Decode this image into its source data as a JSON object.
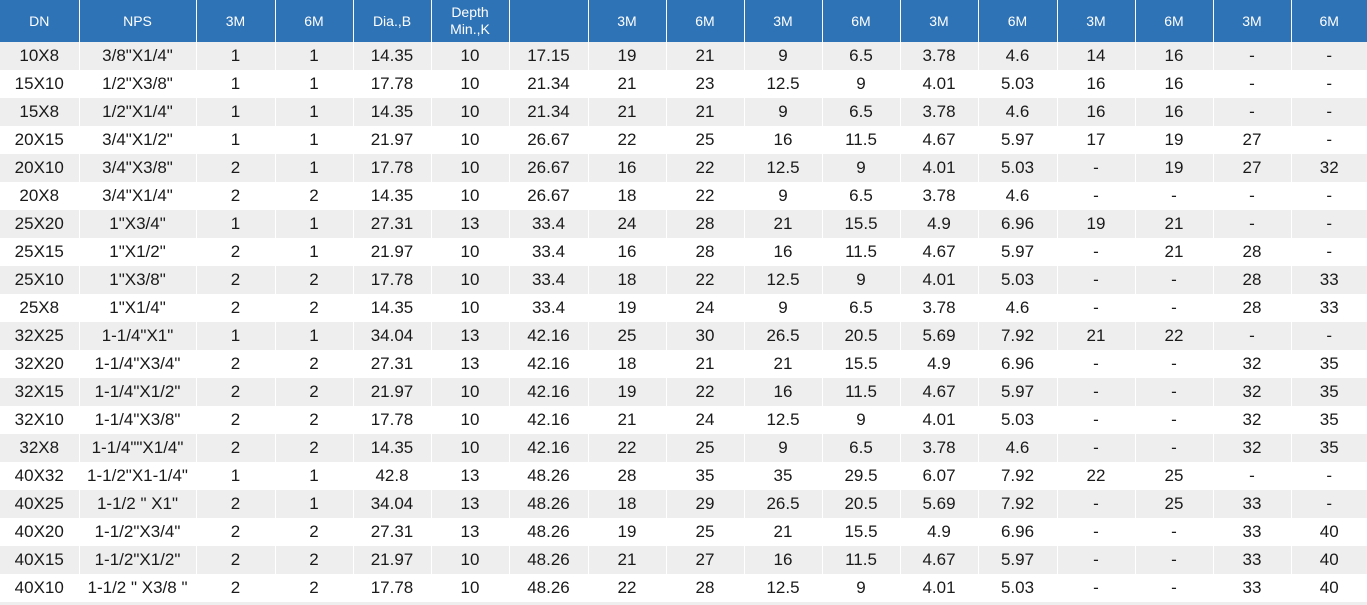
{
  "table": {
    "headers": [
      "DN",
      "NPS",
      "3M",
      "6M",
      "Dia.,B",
      "Depth\nMin.,K",
      "",
      "3M",
      "6M",
      "3M",
      "6M",
      "3M",
      "6M",
      "3M",
      "6M",
      "3M",
      "6M"
    ],
    "rows": [
      [
        "10X8",
        "3/8\"X1/4\"",
        "1",
        "1",
        "14.35",
        "10",
        "17.15",
        "19",
        "21",
        "9",
        "6.5",
        "3.78",
        "4.6",
        "14",
        "16",
        "-",
        "-"
      ],
      [
        "15X10",
        "1/2\"X3/8\"",
        "1",
        "1",
        "17.78",
        "10",
        "21.34",
        "21",
        "23",
        "12.5",
        "9",
        "4.01",
        "5.03",
        "16",
        "16",
        "-",
        "-"
      ],
      [
        "15X8",
        "1/2\"X1/4\"",
        "1",
        "1",
        "14.35",
        "10",
        "21.34",
        "21",
        "21",
        "9",
        "6.5",
        "3.78",
        "4.6",
        "16",
        "16",
        "-",
        "-"
      ],
      [
        "20X15",
        "3/4\"X1/2\"",
        "1",
        "1",
        "21.97",
        "10",
        "26.67",
        "22",
        "25",
        "16",
        "11.5",
        "4.67",
        "5.97",
        "17",
        "19",
        "27",
        "-"
      ],
      [
        "20X10",
        "3/4\"X3/8\"",
        "2",
        "1",
        "17.78",
        "10",
        "26.67",
        "16",
        "22",
        "12.5",
        "9",
        "4.01",
        "5.03",
        "-",
        "19",
        "27",
        "32"
      ],
      [
        "20X8",
        "3/4\"X1/4\"",
        "2",
        "2",
        "14.35",
        "10",
        "26.67",
        "18",
        "22",
        "9",
        "6.5",
        "3.78",
        "4.6",
        "-",
        "-",
        "-",
        "-"
      ],
      [
        "25X20",
        "1\"X3/4\"",
        "1",
        "1",
        "27.31",
        "13",
        "33.4",
        "24",
        "28",
        "21",
        "15.5",
        "4.9",
        "6.96",
        "19",
        "21",
        "-",
        "-"
      ],
      [
        "25X15",
        "1\"X1/2\"",
        "2",
        "1",
        "21.97",
        "10",
        "33.4",
        "16",
        "28",
        "16",
        "11.5",
        "4.67",
        "5.97",
        "-",
        "21",
        "28",
        "-"
      ],
      [
        "25X10",
        "1\"X3/8\"",
        "2",
        "2",
        "17.78",
        "10",
        "33.4",
        "18",
        "22",
        "12.5",
        "9",
        "4.01",
        "5.03",
        "-",
        "-",
        "28",
        "33"
      ],
      [
        "25X8",
        "1\"X1/4\"",
        "2",
        "2",
        "14.35",
        "10",
        "33.4",
        "19",
        "24",
        "9",
        "6.5",
        "3.78",
        "4.6",
        "-",
        "-",
        "28",
        "33"
      ],
      [
        "32X25",
        "1-1/4\"X1\"",
        "1",
        "1",
        "34.04",
        "13",
        "42.16",
        "25",
        "30",
        "26.5",
        "20.5",
        "5.69",
        "7.92",
        "21",
        "22",
        "-",
        "-"
      ],
      [
        "32X20",
        "1-1/4\"X3/4\"",
        "2",
        "2",
        "27.31",
        "13",
        "42.16",
        "18",
        "21",
        "21",
        "15.5",
        "4.9",
        "6.96",
        "-",
        "-",
        "32",
        "35"
      ],
      [
        "32X15",
        "1-1/4\"X1/2\"",
        "2",
        "2",
        "21.97",
        "10",
        "42.16",
        "19",
        "22",
        "16",
        "11.5",
        "4.67",
        "5.97",
        "-",
        "-",
        "32",
        "35"
      ],
      [
        "32X10",
        "1-1/4\"X3/8\"",
        "2",
        "2",
        "17.78",
        "10",
        "42.16",
        "21",
        "24",
        "12.5",
        "9",
        "4.01",
        "5.03",
        "-",
        "-",
        "32",
        "35"
      ],
      [
        "32X8",
        "1-1/4\"\"X1/4\"",
        "2",
        "2",
        "14.35",
        "10",
        "42.16",
        "22",
        "25",
        "9",
        "6.5",
        "3.78",
        "4.6",
        "-",
        "-",
        "32",
        "35"
      ],
      [
        "40X32",
        "1-1/2\"X1-1/4\"",
        "1",
        "1",
        "42.8",
        "13",
        "48.26",
        "28",
        "35",
        "35",
        "29.5",
        "6.07",
        "7.92",
        "22",
        "25",
        "-",
        "-"
      ],
      [
        "40X25",
        "1-1/2 \" X1\"",
        "2",
        "1",
        "34.04",
        "13",
        "48.26",
        "18",
        "29",
        "26.5",
        "20.5",
        "5.69",
        "7.92",
        "-",
        "25",
        "33",
        "-"
      ],
      [
        "40X20",
        "1-1/2\"X3/4\"",
        "2",
        "2",
        "27.31",
        "13",
        "48.26",
        "19",
        "25",
        "21",
        "15.5",
        "4.9",
        "6.96",
        "-",
        "-",
        "33",
        "40"
      ],
      [
        "40X15",
        "1-1/2\"X1/2\"",
        "2",
        "2",
        "21.97",
        "10",
        "48.26",
        "21",
        "27",
        "16",
        "11.5",
        "4.67",
        "5.97",
        "-",
        "-",
        "33",
        "40"
      ],
      [
        "40X10",
        "1-1/2 \" X3/8 \"",
        "2",
        "2",
        "17.78",
        "10",
        "48.26",
        "22",
        "28",
        "12.5",
        "9",
        "4.01",
        "5.03",
        "-",
        "-",
        "33",
        "40"
      ]
    ]
  }
}
